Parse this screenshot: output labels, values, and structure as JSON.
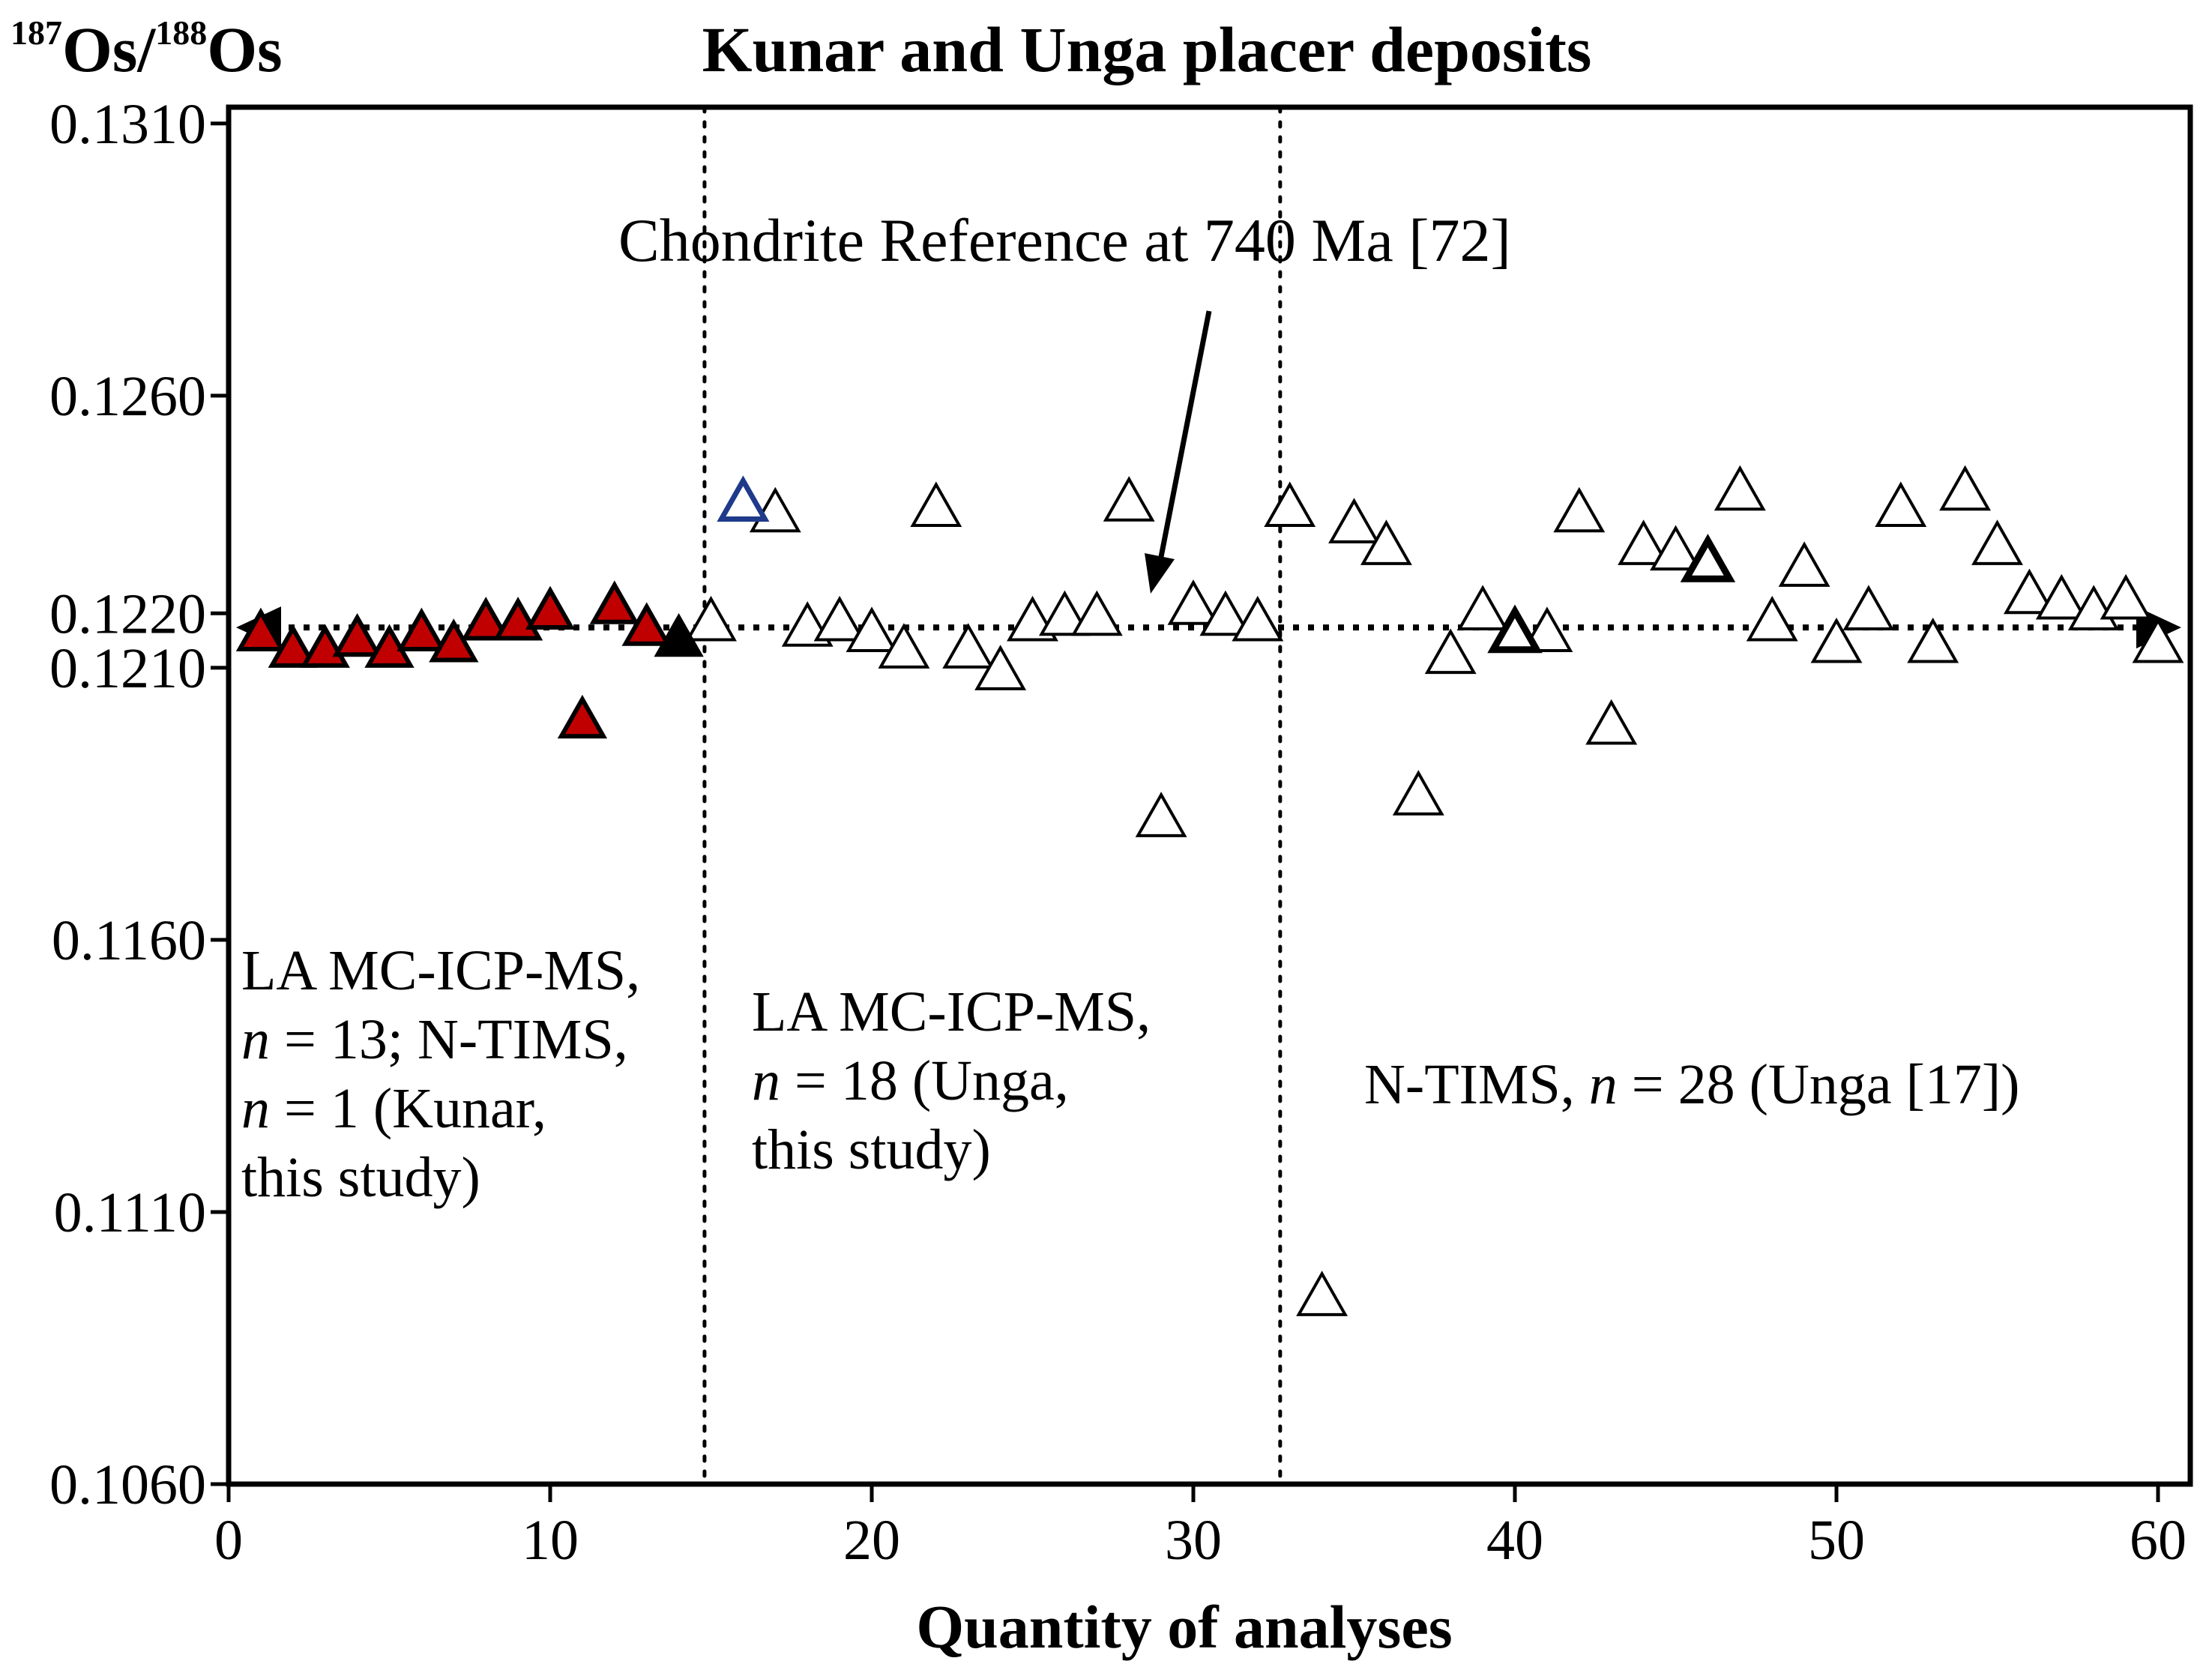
{
  "chart_data": {
    "type": "scatter",
    "title": "Kunar and Unga placer deposits",
    "ylabel": {
      "sup1": "187",
      "base1": "Os/",
      "sup2": "188",
      "base2": "Os"
    },
    "xlabel": "Quantity of analyses",
    "xlim": [
      0,
      61
    ],
    "ylim": [
      0.106,
      0.1313
    ],
    "x_ticks": [
      0,
      10,
      20,
      30,
      40,
      50,
      60
    ],
    "x_tick_labels": [
      "0",
      "10",
      "20",
      "30",
      "40",
      "50",
      "60"
    ],
    "y_ticks": [
      0.131,
      0.126,
      0.122,
      0.121,
      0.116,
      0.111,
      0.106
    ],
    "y_tick_labels": [
      "0.1310",
      "0.1260",
      "0.1220",
      "0.1210",
      "0.1160",
      "0.1110",
      "0.1060"
    ],
    "reference": {
      "label": "Chondrite Reference at 740 Ma [72]",
      "value": 0.12174
    },
    "dividers": [
      14.8,
      32.7
    ],
    "colors": {
      "kunar_fill": "#c00000",
      "open_stroke": "#000000",
      "blue_stroke": "#1f3a8a",
      "ntims_kunar_fill": "#000000"
    },
    "series": [
      {
        "name": "LA MC-ICP-MS Kunar",
        "marker": "filled-red",
        "points": [
          [
            1,
            0.1216
          ],
          [
            2,
            0.1213
          ],
          [
            3,
            0.1213
          ],
          [
            4,
            0.1215
          ],
          [
            5,
            0.1213
          ],
          [
            6,
            0.1216
          ],
          [
            7,
            0.1214
          ],
          [
            8,
            0.1218
          ],
          [
            9,
            0.1218
          ],
          [
            10,
            0.122
          ],
          [
            11,
            0.12
          ],
          [
            12,
            0.1221
          ],
          [
            13,
            0.1217
          ]
        ]
      },
      {
        "name": "N-TIMS Kunar",
        "marker": "filled-black",
        "points": [
          [
            14,
            0.1215
          ]
        ]
      },
      {
        "name": "LA MC-ICP-MS Unga",
        "marker": "open",
        "points": [
          [
            15,
            0.1218
          ],
          [
            17,
            0.1238
          ],
          [
            18,
            0.1217
          ],
          [
            19,
            0.1218
          ],
          [
            20,
            0.1216
          ],
          [
            21,
            0.1213
          ],
          [
            22,
            0.1239
          ],
          [
            23,
            0.1213
          ],
          [
            24,
            0.1209
          ],
          [
            25,
            0.1218
          ],
          [
            26,
            0.1219
          ],
          [
            27,
            0.1219
          ],
          [
            28,
            0.124
          ],
          [
            29,
            0.1182
          ],
          [
            30,
            0.1221
          ],
          [
            31,
            0.1219
          ],
          [
            32,
            0.1218
          ]
        ]
      },
      {
        "name": "LA MC-ICP-MS Unga (highlight)",
        "marker": "open-blue",
        "points": [
          [
            16,
            0.124
          ]
        ]
      },
      {
        "name": "N-TIMS Unga [17]",
        "marker": "open",
        "points": [
          [
            33,
            0.1239
          ],
          [
            34,
            0.1094
          ],
          [
            35,
            0.1236
          ],
          [
            36,
            0.1232
          ],
          [
            37,
            0.1186
          ],
          [
            38,
            0.1212
          ],
          [
            39,
            0.122
          ],
          [
            41,
            0.1216
          ],
          [
            42,
            0.1238
          ],
          [
            43,
            0.1199
          ],
          [
            44,
            0.1232
          ],
          [
            45,
            0.1231
          ],
          [
            47,
            0.1242
          ],
          [
            48,
            0.1218
          ],
          [
            49,
            0.1228
          ],
          [
            50,
            0.1214
          ],
          [
            51,
            0.122
          ],
          [
            52,
            0.1239
          ],
          [
            53,
            0.1214
          ],
          [
            54,
            0.1242
          ],
          [
            55,
            0.1232
          ],
          [
            56,
            0.1223
          ],
          [
            57,
            0.1222
          ],
          [
            58,
            0.122
          ],
          [
            59,
            0.1222
          ],
          [
            60,
            0.1214
          ]
        ]
      },
      {
        "name": "N-TIMS Unga [17] (bold)",
        "marker": "open-bold",
        "points": [
          [
            40,
            0.1216
          ],
          [
            46,
            0.1229
          ]
        ]
      }
    ],
    "annotations": {
      "region1": {
        "line1": "LA MC-ICP-MS,",
        "n1": "n",
        "line2": " = 13; N-TIMS,",
        "n2": "n",
        "line3": " = 1 (Kunar,",
        "line4": "this study)"
      },
      "region2": {
        "line1": "LA MC-ICP-MS,",
        "n1": "n",
        "line2": " = 18 (Unga,",
        "line3": "this study)"
      },
      "region3": {
        "prefix": "N-TIMS, ",
        "n": "n",
        "suffix": " = 28 (Unga [17])"
      }
    }
  }
}
